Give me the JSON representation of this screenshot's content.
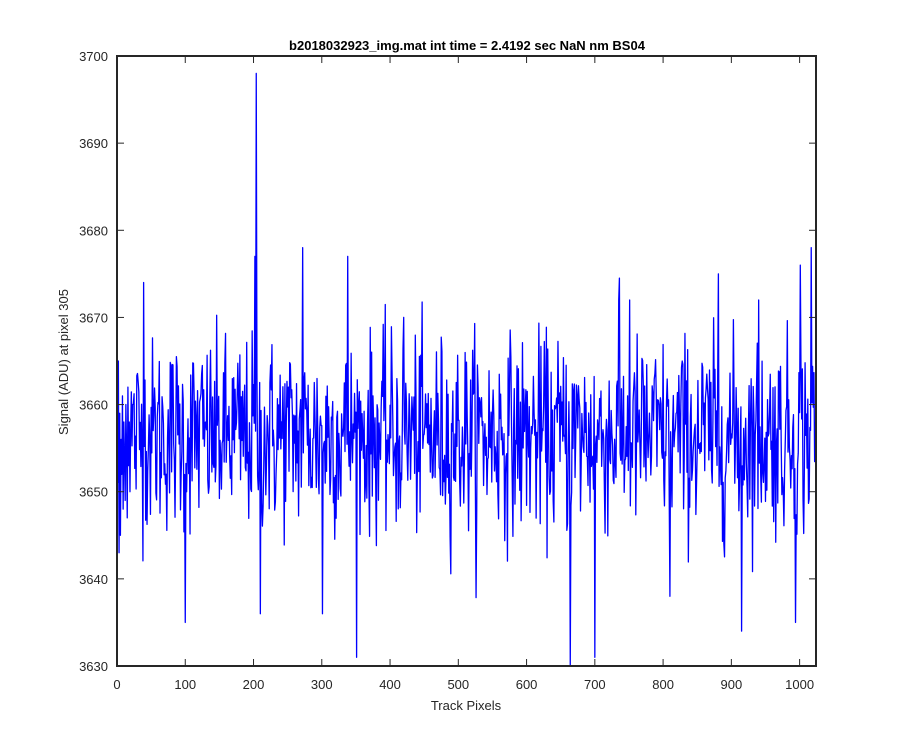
{
  "chart_data": {
    "type": "line",
    "title": "b2018032923_img.mat int time = 2.4192 sec  NaN nm BS04",
    "xlabel": "Track Pixels",
    "ylabel": "Signal (ADU) at pixel 305",
    "xlim": [
      0,
      1024
    ],
    "ylim": [
      3630,
      3700
    ],
    "xticks": [
      0,
      100,
      200,
      300,
      400,
      500,
      600,
      700,
      800,
      900,
      1000
    ],
    "yticks": [
      3630,
      3640,
      3650,
      3660,
      3670,
      3680,
      3690,
      3700
    ],
    "grid": false,
    "series_color": "#0000ff",
    "series": [
      {
        "n_points": 1024,
        "baseline": 3656.5,
        "noise_std": 5.5,
        "y": [
          3651,
          3665,
          3643,
          3659,
          3645,
          3656,
          3652,
          3661,
          3648,
          3658,
          3654,
          3649,
          3660,
          3655,
          3647,
          3662,
          3653,
          3658,
          3650,
          3657
        ],
        "spikes": [
          {
            "x": 38,
            "y": 3674
          },
          {
            "x": 99,
            "y": 3635
          },
          {
            "x": 203,
            "y": 3698
          },
          {
            "x": 201,
            "y": 3677
          },
          {
            "x": 209,
            "y": 3636
          },
          {
            "x": 271,
            "y": 3678
          },
          {
            "x": 300,
            "y": 3636
          },
          {
            "x": 337,
            "y": 3677
          },
          {
            "x": 350,
            "y": 3631
          },
          {
            "x": 419,
            "y": 3670
          },
          {
            "x": 663,
            "y": 3630
          },
          {
            "x": 699,
            "y": 3631
          },
          {
            "x": 734,
            "y": 3672
          },
          {
            "x": 750,
            "y": 3672
          },
          {
            "x": 809,
            "y": 3638
          },
          {
            "x": 880,
            "y": 3675
          },
          {
            "x": 914,
            "y": 3634
          },
          {
            "x": 939,
            "y": 3672
          },
          {
            "x": 993,
            "y": 3635
          },
          {
            "x": 1016,
            "y": 3678
          },
          {
            "x": 1000,
            "y": 3676
          }
        ]
      }
    ]
  }
}
